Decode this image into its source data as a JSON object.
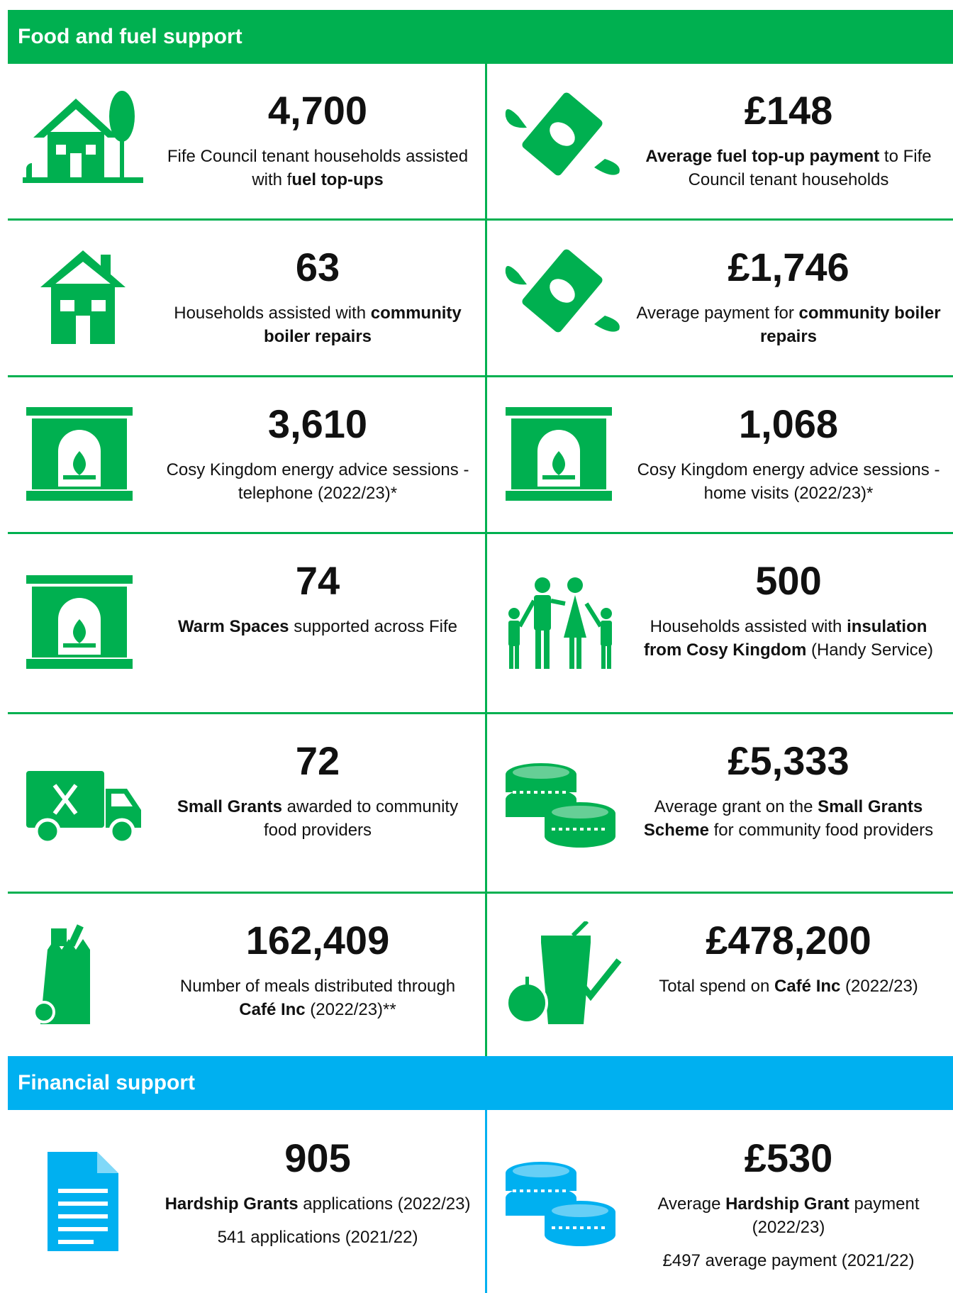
{
  "sections": [
    {
      "title": "Food and fuel support",
      "cells": [
        {
          "value": "4,700",
          "description": [
            {
              "text": "Fife Council tenant households assisted with f"
            },
            {
              "text": "uel top-ups",
              "bold": true
            }
          ]
        },
        {
          "value": "£148",
          "description": [
            {
              "text": "Average fuel top-up payment",
              "bold": true
            },
            {
              "text": " to Fife Council tenant households"
            }
          ]
        },
        {
          "value": "63",
          "description": [
            {
              "text": "Households assisted with "
            },
            {
              "text": "community boiler repairs",
              "bold": true
            }
          ]
        },
        {
          "value": "£1,746",
          "description": [
            {
              "text": "Average payment for "
            },
            {
              "text": "community boiler repairs",
              "bold": true
            }
          ]
        },
        {
          "value": "3,610",
          "description": [
            {
              "text": "Cosy Kingdom energy advice sessions - telephone (2022/23)*"
            }
          ]
        },
        {
          "value": "1,068",
          "description": [
            {
              "text": "Cosy Kingdom energy advice sessions - home visits (2022/23)*"
            }
          ]
        },
        {
          "value": "74",
          "description": [
            {
              "text": "Warm Spaces",
              "bold": true
            },
            {
              "text": " supported across Fife"
            }
          ]
        },
        {
          "value": "500",
          "description": [
            {
              "text": "Households assisted with "
            },
            {
              "text": "insulation from Cosy Kingdom",
              "bold": true
            },
            {
              "text": " (Handy Service)"
            }
          ]
        },
        {
          "value": "72",
          "description": [
            {
              "text": "Small Grants",
              "bold": true
            },
            {
              "text": " awarded to community food providers"
            }
          ]
        },
        {
          "value": "£5,333",
          "description": [
            {
              "text": "Average grant on the "
            },
            {
              "text": "Small Grants Scheme",
              "bold": true
            },
            {
              "text": " for community food providers"
            }
          ]
        },
        {
          "value": "162,409",
          "description": [
            {
              "text": "Number of meals distributed through "
            },
            {
              "text": "Café Inc",
              "bold": true
            },
            {
              "text": " (2022/23)**"
            }
          ]
        },
        {
          "value": "£478,200",
          "description": [
            {
              "text": "Total spend on "
            },
            {
              "text": "Café Inc",
              "bold": true
            },
            {
              "text": " (2022/23)"
            }
          ]
        }
      ]
    },
    {
      "title": "Financial support",
      "cells": [
        {
          "value": "905",
          "description": [
            {
              "text": "Hardship Grants",
              "bold": true
            },
            {
              "text": " applications (2022/23)"
            }
          ],
          "note": "541 applications (2021/22)"
        },
        {
          "value": "£530",
          "description": [
            {
              "text": "Average "
            },
            {
              "text": "Hardship Grant",
              "bold": true
            },
            {
              "text": " payment (2022/23)"
            }
          ],
          "note": "£497 average payment (2021/22)"
        }
      ]
    }
  ]
}
